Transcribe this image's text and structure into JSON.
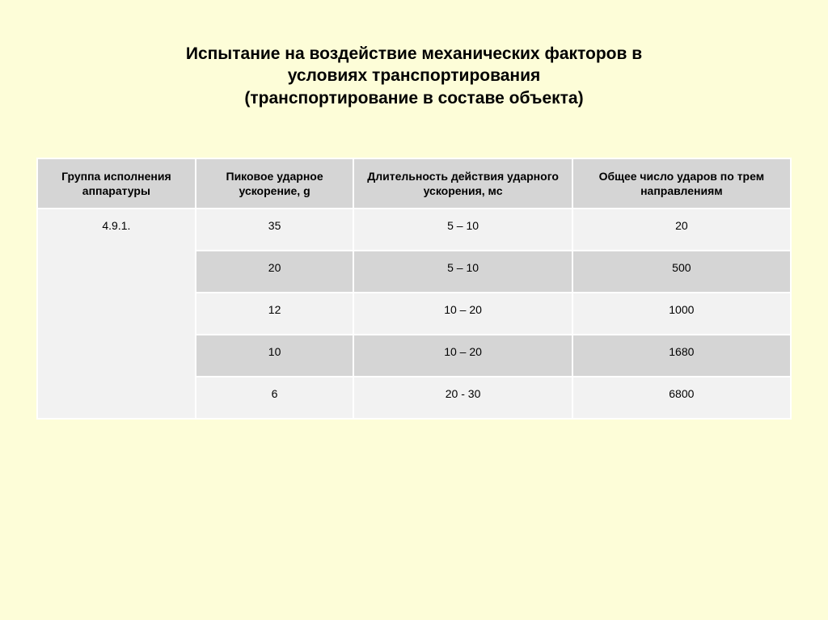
{
  "title_line1": "Испытание на  воздействие механических факторов в",
  "title_line2": "условиях транспортирования",
  "title_line3": "(транспортирование в составе объекта)",
  "table": {
    "columns": [
      "Группа исполнения аппаратуры",
      "Пиковое ударное ускорение, g",
      "Длительность действия ударного ускорения, мс",
      "Общее число ударов по трем направлениям"
    ],
    "group_label": "4.9.1.",
    "rows": [
      {
        "accel": "35",
        "duration": "5 – 10",
        "count": "20"
      },
      {
        "accel": "20",
        "duration": "5 – 10",
        "count": "500"
      },
      {
        "accel": "12",
        "duration": "10 – 20",
        "count": "1000"
      },
      {
        "accel": "10",
        "duration": "10 – 20",
        "count": "1680"
      },
      {
        "accel": "6",
        "duration": "20 - 30",
        "count": "6800"
      }
    ],
    "header_bg": "#d5d5d5",
    "row_odd_bg": "#f2f2f2",
    "row_even_bg": "#d5d5d5",
    "border_color": "#ffffff",
    "text_color": "#000000",
    "header_fontsize": 14,
    "cell_fontsize": 14
  },
  "page_bg": "#fdfdd8",
  "title_fontsize": 21
}
